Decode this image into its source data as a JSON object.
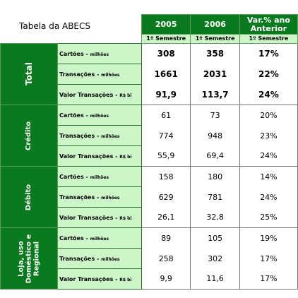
{
  "title": "Tabela da ABECS",
  "columns": [
    {
      "label": "2005",
      "sublabel": "1º Semestre"
    },
    {
      "label": "2006",
      "sublabel": "1º Semestre"
    },
    {
      "label": "Var.% ano Anterior",
      "sublabel": "1º Semestre"
    }
  ],
  "groups": [
    {
      "name": "Total",
      "rows": [
        {
          "label": "Cartões",
          "unit": "milhões",
          "values": [
            "308",
            "358",
            "17%"
          ]
        },
        {
          "label": "Transações",
          "unit": "milhões",
          "values": [
            "1661",
            "2031",
            "22%"
          ]
        },
        {
          "label": "Valor Transações",
          "unit": "R$ bi",
          "values": [
            "91,9",
            "113,7",
            "24%"
          ]
        }
      ]
    },
    {
      "name": "Crédito",
      "rows": [
        {
          "label": "Cartões",
          "unit": "milhões",
          "values": [
            "61",
            "73",
            "20%"
          ]
        },
        {
          "label": "Transações",
          "unit": "milhões",
          "values": [
            "774",
            "948",
            "23%"
          ]
        },
        {
          "label": "Valor Transações",
          "unit": "R$ bi",
          "values": [
            "55,9",
            "69,4",
            "24%"
          ]
        }
      ]
    },
    {
      "name": "Débito",
      "rows": [
        {
          "label": "Cartões",
          "unit": "milhões",
          "values": [
            "158",
            "180",
            "14%"
          ]
        },
        {
          "label": "Transações",
          "unit": "milhões",
          "values": [
            "629",
            "781",
            "24%"
          ]
        },
        {
          "label": "Valor Transações",
          "unit": "R$ bi",
          "values": [
            "26,1",
            "32,8",
            "25%"
          ]
        }
      ]
    },
    {
      "name": "Loja, uso Doméstico e Regional",
      "rows": [
        {
          "label": "Cartões",
          "unit": "milhões",
          "values": [
            "89",
            "105",
            "19%"
          ]
        },
        {
          "label": "Transações",
          "unit": "milhões",
          "values": [
            "258",
            "302",
            "17%"
          ]
        },
        {
          "label": "Valor Transações",
          "unit": "R$ bi",
          "values": [
            "9,9",
            "11,6",
            "17%"
          ]
        }
      ]
    }
  ]
}
